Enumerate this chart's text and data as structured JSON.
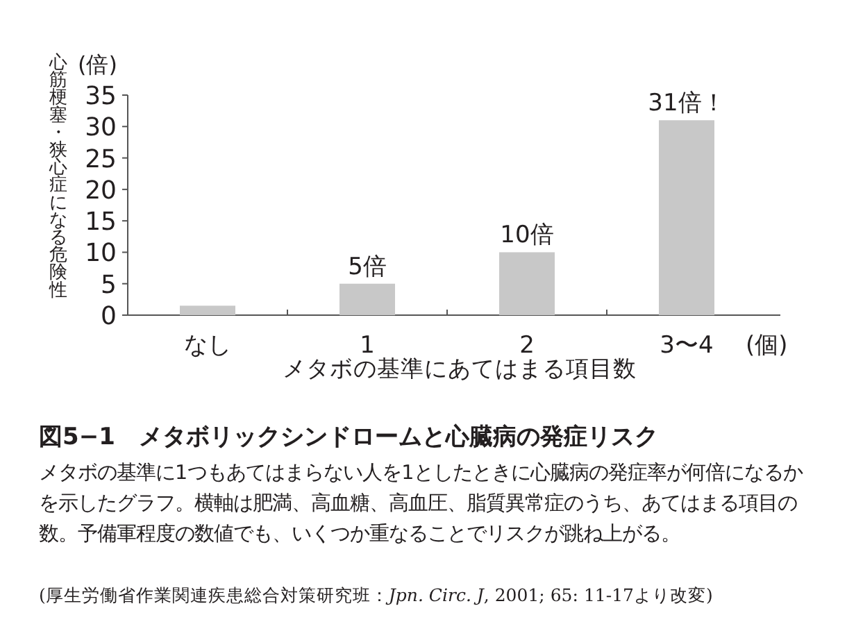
{
  "chart_data": {
    "type": "bar",
    "title": "図5−1　メタボリックシンドロームと心臓病の発症リスク",
    "subtitle": "メタボの基準に1つもあてはまらない人を1としたときに心臓病の発症率が何倍になるかを示したグラフ。横軸は肥満、高血糖、高血圧、脂質異常症のうち、あてはまる項目の数。予備軍程度の数値でも、いくつか重なることでリスクが跳ね上がる。",
    "xlabel": "メタボの基準にあてはまる項目数",
    "ylabel": "心筋梗塞・狭心症になる危険性",
    "annotations": [
      "(倍)",
      "(個)",
      "(厚生労働省作業関連疾患総合対策研究班：*Jpn. Circ. J*, 2001; 65: 11-17より改変)"
    ],
    "categories": [
      "なし",
      "1",
      "2",
      "3〜4"
    ],
    "values": [
      1.5,
      5,
      10,
      31
    ],
    "value_labels": [
      null,
      "5倍",
      "10倍",
      "31倍！"
    ],
    "color": "#c8c8c8",
    "ylim": [
      0,
      35
    ],
    "yticks": [
      0,
      5,
      10,
      15,
      20,
      25,
      30,
      35
    ],
    "grid": false
  }
}
